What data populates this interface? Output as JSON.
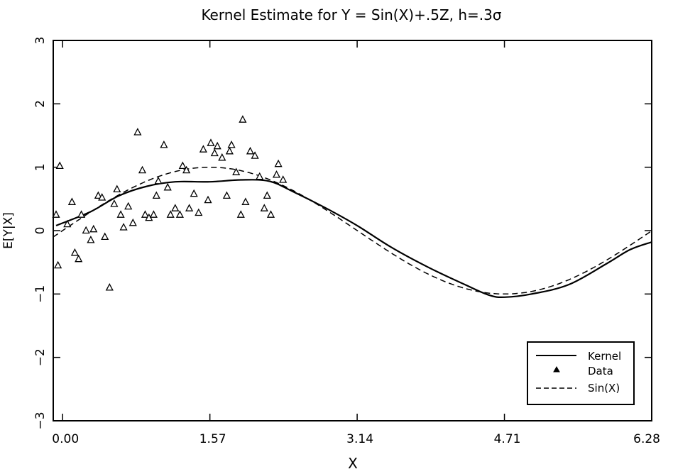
{
  "chart_data": {
    "type": "scatter",
    "title": "Kernel Estimate for Y = Sin(X)+.5Z, h=.3σ",
    "xlabel": "X",
    "ylabel": "E[Y|X]",
    "xlim": [
      -0.1,
      6.28
    ],
    "ylim": [
      -3,
      3
    ],
    "x_ticks": [
      0,
      1.57,
      3.14,
      4.71,
      6.28
    ],
    "x_tick_labels": [
      "0.00",
      "1.57",
      "3.14",
      "4.71",
      "6.28"
    ],
    "y_ticks": [
      -3,
      -2,
      -1,
      0,
      1,
      2,
      3
    ],
    "y_tick_labels": [
      "−3",
      "−2",
      "−1",
      "0",
      "1",
      "2",
      "3"
    ],
    "grid": false,
    "legend_position": "bottom-right",
    "legend": [
      {
        "label": "Kernel",
        "style": "solid line"
      },
      {
        "label": "Data",
        "style": "triangle marker"
      },
      {
        "label": "Sin(X)",
        "style": "dashed line"
      }
    ],
    "series": [
      {
        "name": "Kernel",
        "kind": "line",
        "style": "solid",
        "x": [
          -0.07,
          0.3,
          0.6,
          0.9,
          1.2,
          1.57,
          1.9,
          2.2,
          2.45,
          2.8,
          3.14,
          3.5,
          3.9,
          4.3,
          4.55,
          4.71,
          5.0,
          5.4,
          5.8,
          6.05,
          6.28
        ],
        "y": [
          0.08,
          0.3,
          0.55,
          0.7,
          0.77,
          0.77,
          0.8,
          0.78,
          0.62,
          0.36,
          0.08,
          -0.26,
          -0.58,
          -0.86,
          -1.02,
          -1.05,
          -1.0,
          -0.85,
          -0.52,
          -0.3,
          -0.18
        ]
      },
      {
        "name": "Sin(X)",
        "kind": "function",
        "style": "dashed",
        "function": "sin"
      },
      {
        "name": "Data",
        "kind": "scatter",
        "marker": "triangle",
        "points": [
          [
            -0.07,
            0.25
          ],
          [
            -0.05,
            -0.55
          ],
          [
            -0.03,
            1.02
          ],
          [
            0.05,
            0.1
          ],
          [
            0.1,
            0.45
          ],
          [
            0.13,
            -0.35
          ],
          [
            0.17,
            -0.45
          ],
          [
            0.2,
            0.25
          ],
          [
            0.25,
            0.0
          ],
          [
            0.3,
            -0.15
          ],
          [
            0.33,
            0.02
          ],
          [
            0.38,
            0.55
          ],
          [
            0.42,
            0.52
          ],
          [
            0.45,
            -0.1
          ],
          [
            0.5,
            -0.9
          ],
          [
            0.55,
            0.42
          ],
          [
            0.58,
            0.65
          ],
          [
            0.62,
            0.25
          ],
          [
            0.65,
            0.05
          ],
          [
            0.7,
            0.38
          ],
          [
            0.75,
            0.12
          ],
          [
            0.8,
            1.55
          ],
          [
            0.85,
            0.95
          ],
          [
            0.88,
            0.25
          ],
          [
            0.92,
            0.2
          ],
          [
            0.97,
            0.25
          ],
          [
            1.0,
            0.55
          ],
          [
            1.02,
            0.78
          ],
          [
            1.08,
            1.35
          ],
          [
            1.12,
            0.68
          ],
          [
            1.15,
            0.25
          ],
          [
            1.2,
            0.35
          ],
          [
            1.25,
            0.25
          ],
          [
            1.28,
            1.02
          ],
          [
            1.32,
            0.95
          ],
          [
            1.35,
            0.35
          ],
          [
            1.4,
            0.58
          ],
          [
            1.45,
            0.28
          ],
          [
            1.5,
            1.28
          ],
          [
            1.55,
            0.48
          ],
          [
            1.58,
            1.38
          ],
          [
            1.62,
            1.22
          ],
          [
            1.65,
            1.33
          ],
          [
            1.7,
            1.15
          ],
          [
            1.75,
            0.55
          ],
          [
            1.78,
            1.25
          ],
          [
            1.8,
            1.35
          ],
          [
            1.85,
            0.92
          ],
          [
            1.9,
            0.25
          ],
          [
            1.92,
            1.75
          ],
          [
            1.95,
            0.45
          ],
          [
            2.0,
            1.25
          ],
          [
            2.05,
            1.18
          ],
          [
            2.1,
            0.85
          ],
          [
            2.15,
            0.35
          ],
          [
            2.18,
            0.55
          ],
          [
            2.22,
            0.25
          ],
          [
            2.28,
            0.88
          ],
          [
            2.3,
            1.05
          ],
          [
            2.35,
            0.8
          ]
        ]
      }
    ]
  }
}
